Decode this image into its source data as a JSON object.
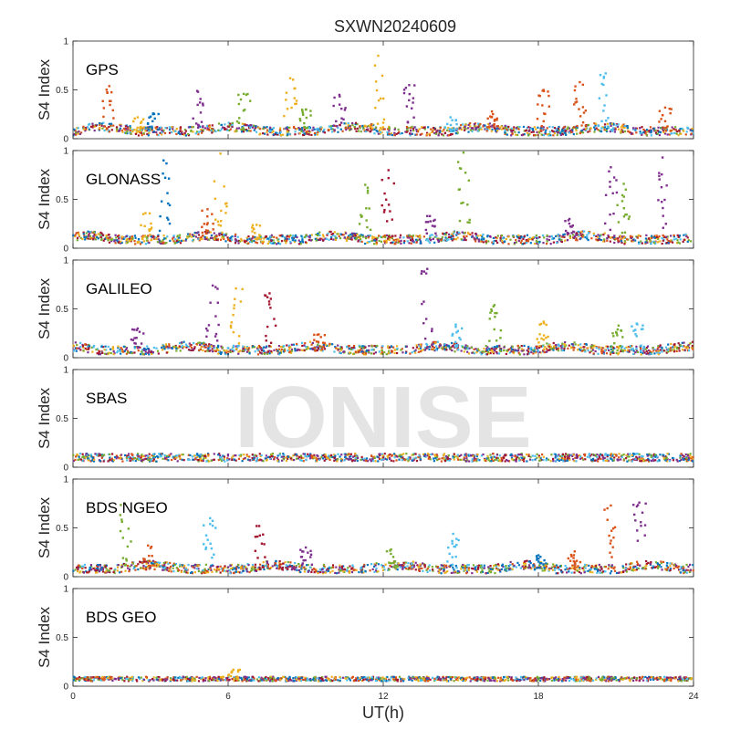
{
  "watermark": "IONISE",
  "chart_data": {
    "type": "scatter",
    "title": "SXWN20240609",
    "xlabel": "UT(h)",
    "ylabel": "S4 Index",
    "xlim": [
      0,
      24
    ],
    "ylim": [
      0,
      1
    ],
    "xticks": [
      0,
      6,
      12,
      18,
      24
    ],
    "yticks": [
      0,
      0.5,
      1
    ],
    "xtick_labels": [
      "0",
      "6",
      "12",
      "18",
      "24"
    ],
    "ytick_labels": [
      "0",
      "0.5",
      "1"
    ],
    "grid": false,
    "series_colors": [
      "#0072bd",
      "#d95319",
      "#edb120",
      "#7e2f8e",
      "#77ac30",
      "#4dbeee",
      "#a2142f"
    ],
    "panels": [
      {
        "label": "GPS",
        "baseline": 0.07,
        "spikes": [
          {
            "x": 1.4,
            "y": 0.54,
            "c": 1
          },
          {
            "x": 2.5,
            "y": 0.22,
            "c": 2
          },
          {
            "x": 3.1,
            "y": 0.26,
            "c": 0
          },
          {
            "x": 4.8,
            "y": 0.49,
            "c": 3
          },
          {
            "x": 6.6,
            "y": 0.46,
            "c": 4
          },
          {
            "x": 8.4,
            "y": 0.62,
            "c": 2
          },
          {
            "x": 9.0,
            "y": 0.3,
            "c": 4
          },
          {
            "x": 10.3,
            "y": 0.45,
            "c": 3
          },
          {
            "x": 11.8,
            "y": 0.85,
            "c": 2
          },
          {
            "x": 13.0,
            "y": 0.55,
            "c": 3
          },
          {
            "x": 14.6,
            "y": 0.22,
            "c": 5
          },
          {
            "x": 16.2,
            "y": 0.28,
            "c": 1
          },
          {
            "x": 18.2,
            "y": 0.5,
            "c": 1
          },
          {
            "x": 19.6,
            "y": 0.58,
            "c": 1
          },
          {
            "x": 20.6,
            "y": 0.67,
            "c": 5
          },
          {
            "x": 22.9,
            "y": 0.32,
            "c": 1
          }
        ]
      },
      {
        "label": "GLONASS",
        "baseline": 0.08,
        "spikes": [
          {
            "x": 2.8,
            "y": 0.36,
            "c": 2
          },
          {
            "x": 3.5,
            "y": 0.9,
            "c": 0
          },
          {
            "x": 5.2,
            "y": 0.4,
            "c": 1
          },
          {
            "x": 5.7,
            "y": 0.97,
            "c": 2
          },
          {
            "x": 7.1,
            "y": 0.24,
            "c": 2
          },
          {
            "x": 11.3,
            "y": 0.65,
            "c": 4
          },
          {
            "x": 12.2,
            "y": 0.8,
            "c": 6
          },
          {
            "x": 13.8,
            "y": 0.33,
            "c": 3
          },
          {
            "x": 15.1,
            "y": 0.98,
            "c": 4
          },
          {
            "x": 19.2,
            "y": 0.3,
            "c": 3
          },
          {
            "x": 20.8,
            "y": 0.83,
            "c": 3
          },
          {
            "x": 21.3,
            "y": 0.66,
            "c": 4
          },
          {
            "x": 22.8,
            "y": 0.93,
            "c": 3
          }
        ]
      },
      {
        "label": "GALILEO",
        "baseline": 0.07,
        "spikes": [
          {
            "x": 2.5,
            "y": 0.3,
            "c": 3
          },
          {
            "x": 5.4,
            "y": 0.74,
            "c": 3
          },
          {
            "x": 6.3,
            "y": 0.71,
            "c": 2
          },
          {
            "x": 7.6,
            "y": 0.66,
            "c": 6
          },
          {
            "x": 9.5,
            "y": 0.24,
            "c": 1
          },
          {
            "x": 13.7,
            "y": 0.91,
            "c": 3
          },
          {
            "x": 14.8,
            "y": 0.34,
            "c": 5
          },
          {
            "x": 16.3,
            "y": 0.54,
            "c": 4
          },
          {
            "x": 18.2,
            "y": 0.37,
            "c": 2
          },
          {
            "x": 21.1,
            "y": 0.33,
            "c": 4
          },
          {
            "x": 21.8,
            "y": 0.35,
            "c": 5
          }
        ]
      },
      {
        "label": "SBAS",
        "baseline": 0.1,
        "spikes": []
      },
      {
        "label": "BDS NGEO",
        "baseline": 0.07,
        "spikes": [
          {
            "x": 2.0,
            "y": 0.75,
            "c": 4
          },
          {
            "x": 2.9,
            "y": 0.32,
            "c": 1
          },
          {
            "x": 5.3,
            "y": 0.6,
            "c": 5
          },
          {
            "x": 7.2,
            "y": 0.52,
            "c": 6
          },
          {
            "x": 9.0,
            "y": 0.3,
            "c": 3
          },
          {
            "x": 12.3,
            "y": 0.28,
            "c": 4
          },
          {
            "x": 14.7,
            "y": 0.44,
            "c": 5
          },
          {
            "x": 18.0,
            "y": 0.22,
            "c": 0
          },
          {
            "x": 19.4,
            "y": 0.26,
            "c": 1
          },
          {
            "x": 20.8,
            "y": 0.73,
            "c": 1
          },
          {
            "x": 21.9,
            "y": 0.76,
            "c": 3
          }
        ]
      },
      {
        "label": "BDS GEO",
        "baseline": 0.075,
        "spikes": [
          {
            "x": 6.2,
            "y": 0.17,
            "c": 2
          }
        ]
      }
    ]
  }
}
